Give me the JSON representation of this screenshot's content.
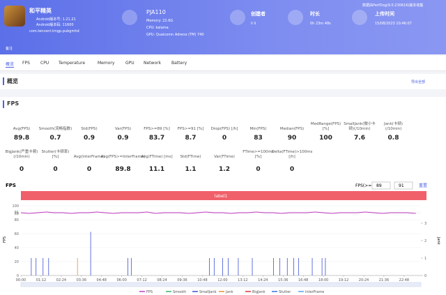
{
  "header": {
    "app": "和平精英",
    "version": "Android版本号: 1.21.21",
    "code": "Android版本码: 11600",
    "package": "com.tencent.tmgp.pubgmhd",
    "device": "PJA110",
    "memory": "Memory: 22.6G",
    "cpu": "CPU: kalama",
    "gpu": "GPU: Qualcomn Adreno (TM) 740",
    "creator_label": "创建者",
    "creator": "li li",
    "duration_label": "时长",
    "duration": "0h 23m 48s",
    "upload_label": "上传时间",
    "upload": "15/08/2023 10:46:07",
    "source": "数据由PerfDog(9.0.230616)版本收集",
    "note": "备注"
  },
  "tabs": [
    "概览",
    "FPS",
    "CPU",
    "Temperature",
    "Memory",
    "GPU",
    "Network",
    "Battery"
  ],
  "overview": {
    "title": "概览",
    "export": "导出全部"
  },
  "fps_section": {
    "title": "FPS",
    "row1": [
      {
        "label": "Avg(FPS)",
        "value": 89.8
      },
      {
        "label": "Smooth(流畅指数)",
        "value": 0.7
      },
      {
        "label": "Std(FPS)",
        "value": 0.9
      },
      {
        "label": "Var(FPS)",
        "value": 0.9
      },
      {
        "label": "FPS>=89 [%]",
        "value": 83.7
      },
      {
        "label": "FPS>=91 [%]",
        "value": 8.7
      },
      {
        "label": "Drop(FPS) [/h]",
        "value": 0
      },
      {
        "label": "Min(FPS)",
        "value": 83
      },
      {
        "label": "Median(FPS)",
        "value": 90
      },
      {
        "label": "MedRange(FPS)[%]",
        "value": 100
      },
      {
        "label": "SmallJank(微小卡顿)(/10min)",
        "value": 7.6
      },
      {
        "label": "Jank(卡顿)(/10min)",
        "value": 0.8
      }
    ],
    "row2": [
      {
        "label": "BigJank(严重卡顿)(/10min)",
        "value": 0
      },
      {
        "label": "Stutter(卡顿率) [%]",
        "value": 0
      },
      {
        "label": "Avg(InterFrame)",
        "value": 0
      },
      {
        "label": "Avg(FPS>=InterFrame)",
        "value": 89.8
      },
      {
        "label": "Avg(FTime) [ms]",
        "value": 11.1
      },
      {
        "label": "Std(FTime)",
        "value": 1.1
      },
      {
        "label": "Var(FTime)",
        "value": 1.2
      },
      {
        "label": "FTime>=100ms [%]",
        "value": 0
      },
      {
        "label": "Delta(FTime)>100ms [/h]",
        "value": 0
      }
    ]
  },
  "chart_data": {
    "type": "line",
    "title": "FPS",
    "threshold_label": "FPS(>=)",
    "threshold_low": 89,
    "threshold_high": 91,
    "reset": "重置",
    "band_label": "label1",
    "xlim": [
      0,
      1428
    ],
    "xticks": [
      {
        "value": 0,
        "label": "00:00"
      },
      {
        "value": 72,
        "label": "01:12"
      },
      {
        "value": 144,
        "label": "02:24"
      },
      {
        "value": 216,
        "label": "03:36"
      },
      {
        "value": 288,
        "label": "04:48"
      },
      {
        "value": 360,
        "label": "06:00"
      },
      {
        "value": 432,
        "label": "07:12"
      },
      {
        "value": 504,
        "label": "08:24"
      },
      {
        "value": 576,
        "label": "09:36"
      },
      {
        "value": 648,
        "label": "10:48"
      },
      {
        "value": 720,
        "label": "12:00"
      },
      {
        "value": 792,
        "label": "13:12"
      },
      {
        "value": 864,
        "label": "14:24"
      },
      {
        "value": 936,
        "label": "15:36"
      },
      {
        "value": 1008,
        "label": "16:48"
      },
      {
        "value": 1080,
        "label": "18:00"
      },
      {
        "value": 1152,
        "label": "19:12"
      },
      {
        "value": 1224,
        "label": "20:24"
      },
      {
        "value": 1296,
        "label": "21:36"
      },
      {
        "value": 1368,
        "label": "22:48"
      }
    ],
    "ylim": [
      0,
      100
    ],
    "yticks": [
      0,
      20,
      40,
      60,
      80,
      89,
      91,
      100
    ],
    "ylabel": "FPS",
    "y2lim": [
      0,
      4
    ],
    "y2ticks": [
      0,
      1,
      2,
      3
    ],
    "y2label": "Jank",
    "series": [
      {
        "name": "FPS",
        "color": "#c23ac2",
        "x": [
          0,
          30,
          60,
          90,
          120,
          150,
          180,
          210,
          240,
          270,
          300,
          330,
          360,
          390,
          420,
          450,
          480,
          510,
          540,
          570,
          600,
          630,
          660,
          690,
          720,
          750,
          780,
          810,
          840,
          870,
          900,
          930,
          960,
          990,
          1020,
          1050,
          1080,
          1110,
          1140,
          1170,
          1200,
          1230,
          1260,
          1290,
          1320,
          1350,
          1380,
          1410
        ],
        "values": [
          90,
          89,
          90,
          91,
          90,
          90,
          89,
          90,
          90,
          91,
          90,
          89,
          90,
          90,
          90,
          91,
          89,
          90,
          90,
          90,
          89,
          90,
          91,
          90,
          90,
          89,
          90,
          90,
          91,
          90,
          90,
          89,
          90,
          90,
          90,
          91,
          90,
          89,
          90,
          90,
          90,
          91,
          90,
          89,
          90,
          90,
          90,
          89
        ]
      },
      {
        "name": "Smooth",
        "color": "#3cb371",
        "x": [],
        "values": [],
        "axis": "y2"
      },
      {
        "name": "SmallJank",
        "color": "#3b50d6",
        "axis": "y2",
        "x": [
          37,
          54,
          79,
          99,
          249,
          382,
          394,
          673,
          690,
          720,
          740,
          776,
          826,
          902,
          924,
          951,
          974,
          991,
          1040,
          1075,
          1087
        ],
        "values": [
          1,
          1,
          1,
          1,
          2.5,
          1,
          1,
          1,
          1,
          1,
          1,
          1,
          1,
          1,
          1,
          1,
          1,
          1,
          1,
          1,
          1
        ]
      },
      {
        "name": "Jank",
        "color": "#f08c2a",
        "axis": "y2",
        "x": [
          202
        ],
        "values": [
          1
        ]
      },
      {
        "name": "BigJank",
        "color": "#e0303a",
        "x": [],
        "values": [],
        "axis": "y2"
      },
      {
        "name": "Stutter",
        "color": "#3a6fe0",
        "x": [],
        "values": [],
        "axis": "y2"
      },
      {
        "name": "InterFrame",
        "color": "#5aa0ee",
        "x": [],
        "values": [],
        "axis": "y2"
      }
    ]
  }
}
